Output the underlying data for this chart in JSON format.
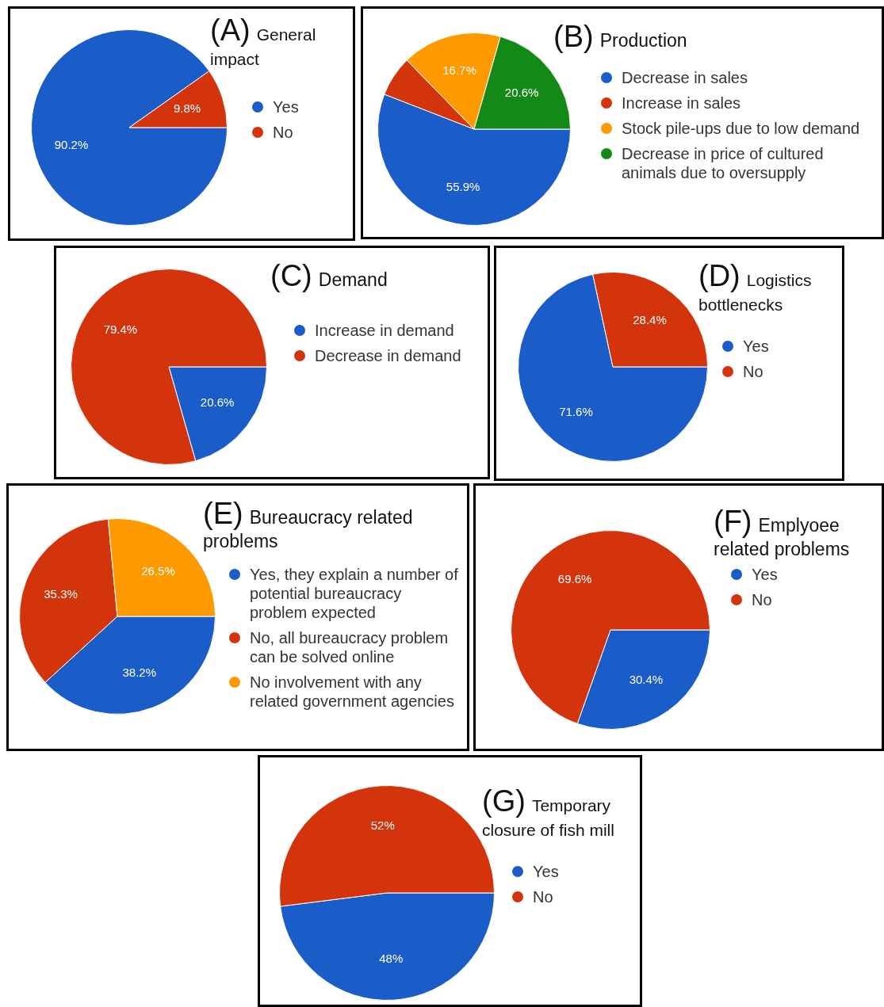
{
  "chart_data": [
    {
      "type": "pie",
      "title": "(A) General impact",
      "categories": [
        "Yes",
        "No"
      ],
      "values": [
        90.2,
        9.8
      ],
      "colors": [
        "#1a5cc8",
        "#d4340c"
      ],
      "value_labels": [
        "90.2%",
        "9.8%"
      ],
      "legend": "right"
    },
    {
      "type": "pie",
      "title": "(B) Production",
      "categories": [
        "Decrease in sales",
        "Increase in sales",
        "Stock pile-ups due to low demand",
        "Decrease in price of cultured animals due to oversupply"
      ],
      "values": [
        55.9,
        6.8,
        16.7,
        20.6
      ],
      "colors": [
        "#1a5cc8",
        "#d4340c",
        "#ff9900",
        "#138a17"
      ],
      "value_labels": [
        "55.9%",
        null,
        "16.7%",
        "20.6%"
      ],
      "legend": "right"
    },
    {
      "type": "pie",
      "title": "(C) Demand",
      "categories": [
        "Increase in demand",
        "Decrease in demand"
      ],
      "values": [
        20.6,
        79.4
      ],
      "colors": [
        "#1a5cc8",
        "#d4340c"
      ],
      "value_labels": [
        "20.6%",
        "79.4%"
      ],
      "legend": "right"
    },
    {
      "type": "pie",
      "title": "(D) Logistics bottlenecks",
      "categories": [
        "Yes",
        "No"
      ],
      "values": [
        71.6,
        28.4
      ],
      "colors": [
        "#1a5cc8",
        "#d4340c"
      ],
      "value_labels": [
        "71.6%",
        "28.4%"
      ],
      "legend": "right"
    },
    {
      "type": "pie",
      "title": "(E) Bureaucracy related problems",
      "categories": [
        "Yes, they explain a number of potential bureaucracy problem expected",
        "No, all bureaucracy problem can be solved online",
        "No involvement with any related government agencies"
      ],
      "values": [
        38.2,
        35.3,
        26.5
      ],
      "colors": [
        "#1a5cc8",
        "#d4340c",
        "#ff9900"
      ],
      "value_labels": [
        "38.2%",
        "35.3%",
        "26.5%"
      ],
      "legend": "right"
    },
    {
      "type": "pie",
      "title": "(F) Emplyoee related problems",
      "categories": [
        "Yes",
        "No"
      ],
      "values": [
        30.4,
        69.6
      ],
      "colors": [
        "#1a5cc8",
        "#d4340c"
      ],
      "value_labels": [
        "30.4%",
        "69.6%"
      ],
      "legend": "right"
    },
    {
      "type": "pie",
      "title": "(G) Temporary closure of fish mill",
      "categories": [
        "Yes",
        "No"
      ],
      "values": [
        48,
        52
      ],
      "colors": [
        "#1a5cc8",
        "#d4340c"
      ],
      "value_labels": [
        "48%",
        "52%"
      ],
      "legend": "right"
    }
  ]
}
